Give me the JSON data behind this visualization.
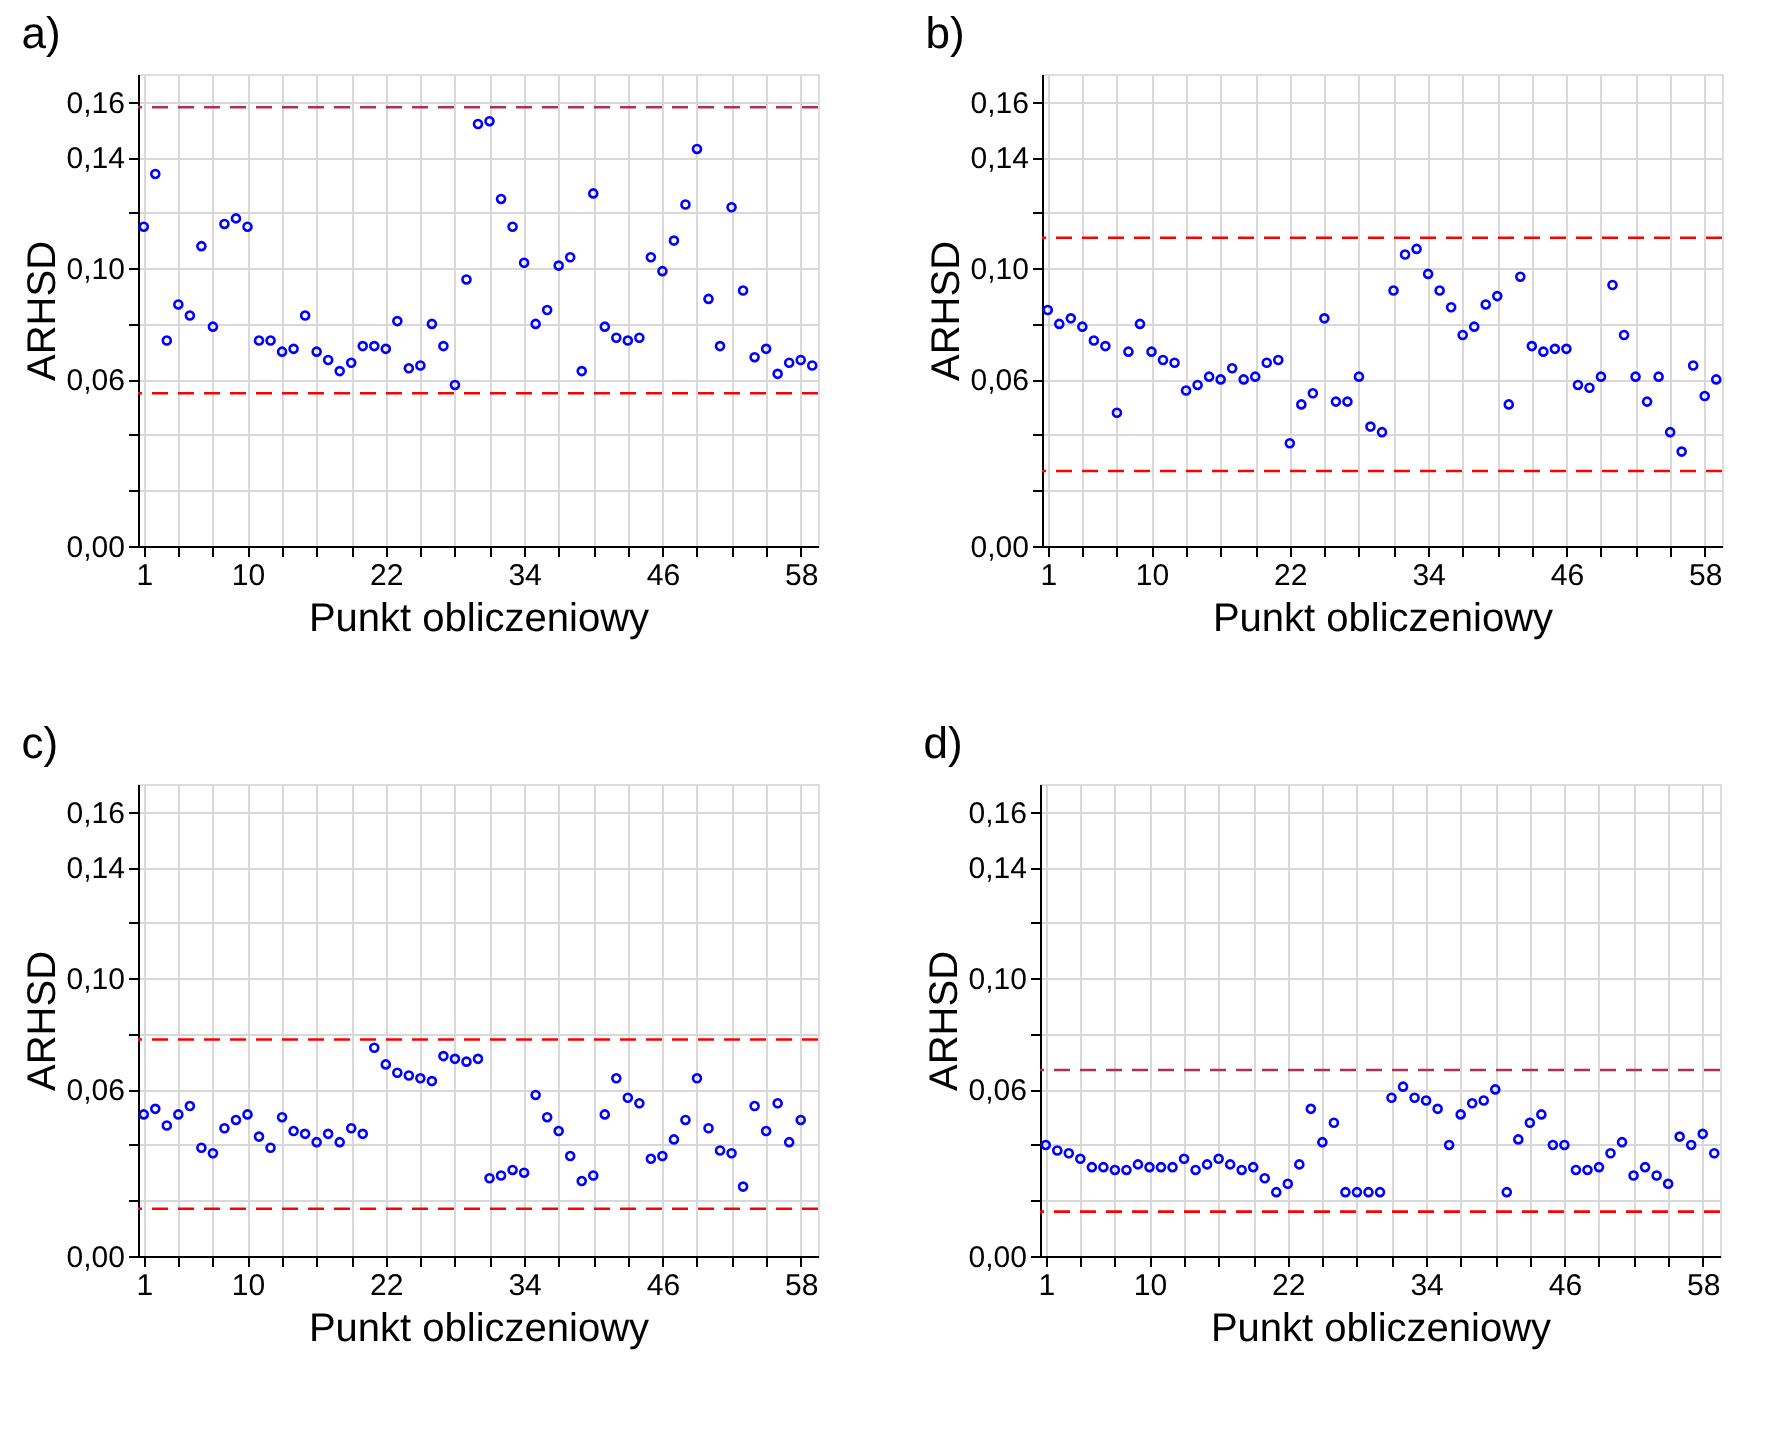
{
  "chart_data": [
    {
      "type": "scatter",
      "title": "a)",
      "xlabel": "Punkt obliczeniowy",
      "ylabel": "ARHSD",
      "marker": "circle",
      "grid": true,
      "xlim": [
        0.5,
        59.5
      ],
      "ylim": [
        0,
        0.17
      ],
      "xticks": [
        {
          "value": 1,
          "label": "1"
        },
        {
          "value": 4,
          "label": null
        },
        {
          "value": 7,
          "label": null
        },
        {
          "value": 10,
          "label": "10"
        },
        {
          "value": 13,
          "label": null
        },
        {
          "value": 16,
          "label": null
        },
        {
          "value": 19,
          "label": null
        },
        {
          "value": 22,
          "label": "22"
        },
        {
          "value": 25,
          "label": null
        },
        {
          "value": 28,
          "label": null
        },
        {
          "value": 31,
          "label": null
        },
        {
          "value": 34,
          "label": "34"
        },
        {
          "value": 37,
          "label": null
        },
        {
          "value": 40,
          "label": null
        },
        {
          "value": 43,
          "label": null
        },
        {
          "value": 46,
          "label": "46"
        },
        {
          "value": 49,
          "label": null
        },
        {
          "value": 52,
          "label": null
        },
        {
          "value": 55,
          "label": null
        },
        {
          "value": 58,
          "label": "58"
        }
      ],
      "yticks": [
        {
          "value": 0,
          "label": "0,00"
        },
        {
          "value": 0.02,
          "label": null
        },
        {
          "value": 0.04,
          "label": null
        },
        {
          "value": 0.06,
          "label": "0,06"
        },
        {
          "value": 0.08,
          "label": null
        },
        {
          "value": 0.1,
          "label": "0,10"
        },
        {
          "value": 0.12,
          "label": null
        },
        {
          "value": 0.14,
          "label": "0,14"
        },
        {
          "value": 0.16,
          "label": "0,16"
        }
      ],
      "x": [
        1,
        2,
        3,
        4,
        5,
        6,
        7,
        8,
        9,
        10,
        11,
        12,
        13,
        14,
        15,
        16,
        17,
        18,
        19,
        20,
        21,
        22,
        23,
        24,
        25,
        26,
        27,
        28,
        29,
        30,
        31,
        32,
        33,
        34,
        35,
        36,
        37,
        38,
        39,
        40,
        41,
        42,
        43,
        44,
        45,
        46,
        47,
        48,
        49,
        50,
        51,
        52,
        53,
        54,
        55,
        56,
        57,
        58,
        59
      ],
      "series": [
        {
          "color": "#0000ff",
          "values": [
            0.115,
            0.134,
            0.074,
            0.087,
            0.083,
            0.108,
            0.079,
            0.116,
            0.118,
            0.115,
            0.074,
            0.074,
            0.07,
            0.071,
            0.083,
            0.07,
            0.067,
            0.063,
            0.066,
            0.072,
            0.072,
            0.071,
            0.081,
            0.064,
            0.065,
            0.08,
            0.072,
            0.058,
            0.096,
            0.152,
            0.153,
            0.125,
            0.115,
            0.102,
            0.08,
            0.085,
            0.101,
            0.104,
            0.063,
            0.127,
            0.079,
            0.075,
            0.074,
            0.075,
            0.104,
            0.099,
            0.11,
            0.123,
            0.143,
            0.089,
            0.072,
            0.122,
            0.092,
            0.068,
            0.071,
            0.062,
            0.066,
            0.067,
            0.065
          ]
        }
      ],
      "ref_lines": [
        {
          "axis": "y",
          "value": 0.158,
          "color": "#b03050",
          "line_style": "dashed"
        },
        {
          "axis": "y",
          "value": 0.055,
          "color": "#ff0000",
          "line_style": "dashed"
        }
      ]
    },
    {
      "type": "scatter",
      "title": "b)",
      "xlabel": "Punkt obliczeniowy",
      "ylabel": "ARHSD",
      "marker": "circle",
      "grid": true,
      "xlim": [
        0.5,
        59.5
      ],
      "ylim": [
        0,
        0.17
      ],
      "xticks": [
        {
          "value": 1,
          "label": "1"
        },
        {
          "value": 4,
          "label": null
        },
        {
          "value": 7,
          "label": null
        },
        {
          "value": 10,
          "label": "10"
        },
        {
          "value": 13,
          "label": null
        },
        {
          "value": 16,
          "label": null
        },
        {
          "value": 19,
          "label": null
        },
        {
          "value": 22,
          "label": "22"
        },
        {
          "value": 25,
          "label": null
        },
        {
          "value": 28,
          "label": null
        },
        {
          "value": 31,
          "label": null
        },
        {
          "value": 34,
          "label": "34"
        },
        {
          "value": 37,
          "label": null
        },
        {
          "value": 40,
          "label": null
        },
        {
          "value": 43,
          "label": null
        },
        {
          "value": 46,
          "label": "46"
        },
        {
          "value": 49,
          "label": null
        },
        {
          "value": 52,
          "label": null
        },
        {
          "value": 55,
          "label": null
        },
        {
          "value": 58,
          "label": "58"
        }
      ],
      "yticks": [
        {
          "value": 0,
          "label": "0,00"
        },
        {
          "value": 0.02,
          "label": null
        },
        {
          "value": 0.04,
          "label": null
        },
        {
          "value": 0.06,
          "label": "0,06"
        },
        {
          "value": 0.08,
          "label": null
        },
        {
          "value": 0.1,
          "label": "0,10"
        },
        {
          "value": 0.12,
          "label": null
        },
        {
          "value": 0.14,
          "label": "0,14"
        },
        {
          "value": 0.16,
          "label": "0,16"
        }
      ],
      "x": [
        1,
        2,
        3,
        4,
        5,
        6,
        7,
        8,
        9,
        10,
        11,
        12,
        13,
        14,
        15,
        16,
        17,
        18,
        19,
        20,
        21,
        22,
        23,
        24,
        25,
        26,
        27,
        28,
        29,
        30,
        31,
        32,
        33,
        34,
        35,
        36,
        37,
        38,
        39,
        40,
        41,
        42,
        43,
        44,
        45,
        46,
        47,
        48,
        49,
        50,
        51,
        52,
        53,
        54,
        55,
        56,
        57,
        58,
        59
      ],
      "series": [
        {
          "color": "#0000ff",
          "values": [
            0.085,
            0.08,
            0.082,
            0.079,
            0.074,
            0.072,
            0.048,
            0.07,
            0.08,
            0.07,
            0.067,
            0.066,
            0.056,
            0.058,
            0.061,
            0.06,
            0.064,
            0.06,
            0.061,
            0.066,
            0.067,
            0.037,
            0.051,
            0.055,
            0.082,
            0.052,
            0.052,
            0.061,
            0.043,
            0.041,
            0.092,
            0.105,
            0.107,
            0.098,
            0.092,
            0.086,
            0.076,
            0.079,
            0.087,
            0.09,
            0.051,
            0.097,
            0.072,
            0.07,
            0.071,
            0.071,
            0.058,
            0.057,
            0.061,
            0.094,
            0.076,
            0.061,
            0.052,
            0.061,
            0.041,
            0.034,
            0.065,
            0.054,
            0.06
          ]
        }
      ],
      "ref_lines": [
        {
          "axis": "y",
          "value": 0.111,
          "color": "#ff0000",
          "line_style": "dashed"
        },
        {
          "axis": "y",
          "value": 0.027,
          "color": "#ff0000",
          "line_style": "dashed"
        }
      ]
    },
    {
      "type": "scatter",
      "title": "c)",
      "xlabel": "Punkt obliczeniowy",
      "ylabel": "ARHSD",
      "marker": "circle",
      "grid": true,
      "xlim": [
        0.5,
        59.5
      ],
      "ylim": [
        0,
        0.17
      ],
      "xticks": [
        {
          "value": 1,
          "label": "1"
        },
        {
          "value": 4,
          "label": null
        },
        {
          "value": 7,
          "label": null
        },
        {
          "value": 10,
          "label": "10"
        },
        {
          "value": 13,
          "label": null
        },
        {
          "value": 16,
          "label": null
        },
        {
          "value": 19,
          "label": null
        },
        {
          "value": 22,
          "label": "22"
        },
        {
          "value": 25,
          "label": null
        },
        {
          "value": 28,
          "label": null
        },
        {
          "value": 31,
          "label": null
        },
        {
          "value": 34,
          "label": "34"
        },
        {
          "value": 37,
          "label": null
        },
        {
          "value": 40,
          "label": null
        },
        {
          "value": 43,
          "label": null
        },
        {
          "value": 46,
          "label": "46"
        },
        {
          "value": 49,
          "label": null
        },
        {
          "value": 52,
          "label": null
        },
        {
          "value": 55,
          "label": null
        },
        {
          "value": 58,
          "label": "58"
        }
      ],
      "yticks": [
        {
          "value": 0,
          "label": "0,00"
        },
        {
          "value": 0.02,
          "label": null
        },
        {
          "value": 0.04,
          "label": null
        },
        {
          "value": 0.06,
          "label": "0,06"
        },
        {
          "value": 0.08,
          "label": null
        },
        {
          "value": 0.1,
          "label": "0,10"
        },
        {
          "value": 0.12,
          "label": null
        },
        {
          "value": 0.14,
          "label": "0,14"
        },
        {
          "value": 0.16,
          "label": "0,16"
        }
      ],
      "x": [
        1,
        2,
        3,
        4,
        5,
        6,
        7,
        8,
        9,
        10,
        11,
        12,
        13,
        14,
        15,
        16,
        17,
        18,
        19,
        20,
        21,
        22,
        23,
        24,
        25,
        26,
        27,
        28,
        29,
        30,
        31,
        32,
        33,
        34,
        35,
        36,
        37,
        38,
        39,
        40,
        41,
        42,
        43,
        44,
        45,
        46,
        47,
        48,
        49,
        50,
        51,
        52,
        53,
        54,
        55,
        56,
        57,
        58
      ],
      "series": [
        {
          "color": "#0000ff",
          "values": [
            0.051,
            0.053,
            0.047,
            0.051,
            0.054,
            0.039,
            0.037,
            0.046,
            0.049,
            0.051,
            0.043,
            0.039,
            0.05,
            0.045,
            0.044,
            0.041,
            0.044,
            0.041,
            0.046,
            0.044,
            0.075,
            0.069,
            0.066,
            0.065,
            0.064,
            0.063,
            0.072,
            0.071,
            0.07,
            0.071,
            0.028,
            0.029,
            0.031,
            0.03,
            0.058,
            0.05,
            0.045,
            0.036,
            0.027,
            0.029,
            0.051,
            0.064,
            0.057,
            0.055,
            0.035,
            0.036,
            0.042,
            0.049,
            0.064,
            0.046,
            0.038,
            0.037,
            0.025,
            0.054,
            0.045,
            0.055,
            0.041,
            0.049
          ]
        }
      ],
      "ref_lines": [
        {
          "axis": "y",
          "value": 0.078,
          "color": "#ff0000",
          "line_style": "dashed"
        },
        {
          "axis": "y",
          "value": 0.017,
          "color": "#ff0000",
          "line_style": "dashed"
        }
      ]
    },
    {
      "type": "scatter",
      "title": "d)",
      "xlabel": "Punkt obliczeniowy",
      "ylabel": "ARHSD",
      "marker": "circle",
      "grid": true,
      "xlim": [
        0.5,
        59.5
      ],
      "ylim": [
        0,
        0.17
      ],
      "xticks": [
        {
          "value": 1,
          "label": "1"
        },
        {
          "value": 4,
          "label": null
        },
        {
          "value": 7,
          "label": null
        },
        {
          "value": 10,
          "label": "10"
        },
        {
          "value": 13,
          "label": null
        },
        {
          "value": 16,
          "label": null
        },
        {
          "value": 19,
          "label": null
        },
        {
          "value": 22,
          "label": "22"
        },
        {
          "value": 25,
          "label": null
        },
        {
          "value": 28,
          "label": null
        },
        {
          "value": 31,
          "label": null
        },
        {
          "value": 34,
          "label": "34"
        },
        {
          "value": 37,
          "label": null
        },
        {
          "value": 40,
          "label": null
        },
        {
          "value": 43,
          "label": null
        },
        {
          "value": 46,
          "label": "46"
        },
        {
          "value": 49,
          "label": null
        },
        {
          "value": 52,
          "label": null
        },
        {
          "value": 55,
          "label": null
        },
        {
          "value": 58,
          "label": "58"
        }
      ],
      "yticks": [
        {
          "value": 0,
          "label": "0,00"
        },
        {
          "value": 0.02,
          "label": null
        },
        {
          "value": 0.04,
          "label": null
        },
        {
          "value": 0.06,
          "label": "0,06"
        },
        {
          "value": 0.08,
          "label": null
        },
        {
          "value": 0.1,
          "label": "0,10"
        },
        {
          "value": 0.12,
          "label": null
        },
        {
          "value": 0.14,
          "label": "0,14"
        },
        {
          "value": 0.16,
          "label": "0,16"
        }
      ],
      "x": [
        1,
        2,
        3,
        4,
        5,
        6,
        7,
        8,
        9,
        10,
        11,
        12,
        13,
        14,
        15,
        16,
        17,
        18,
        19,
        20,
        21,
        22,
        23,
        24,
        25,
        26,
        27,
        28,
        29,
        30,
        31,
        32,
        33,
        34,
        35,
        36,
        37,
        38,
        39,
        40,
        41,
        42,
        43,
        44,
        45,
        46,
        47,
        48,
        49,
        50,
        51,
        52,
        53,
        54,
        55,
        56,
        57,
        58,
        59
      ],
      "series": [
        {
          "color": "#0000ff",
          "values": [
            0.04,
            0.038,
            0.037,
            0.035,
            0.032,
            0.032,
            0.031,
            0.031,
            0.033,
            0.032,
            0.032,
            0.032,
            0.035,
            0.031,
            0.033,
            0.035,
            0.033,
            0.031,
            0.032,
            0.028,
            0.023,
            0.026,
            0.033,
            0.053,
            0.041,
            0.048,
            0.023,
            0.023,
            0.023,
            0.023,
            0.057,
            0.061,
            0.057,
            0.056,
            0.053,
            0.04,
            0.051,
            0.055,
            0.056,
            0.06,
            0.023,
            0.042,
            0.048,
            0.051,
            0.04,
            0.04,
            0.031,
            0.031,
            0.032,
            0.037,
            0.041,
            0.029,
            0.032,
            0.029,
            0.026,
            0.043,
            0.04,
            0.044,
            0.037
          ]
        }
      ],
      "ref_lines": [
        {
          "axis": "y",
          "value": 0.067,
          "color": "#b03050",
          "line_style": "dashed"
        },
        {
          "axis": "y",
          "value": 0.016,
          "color": "#ff0000",
          "line_style": "dashed"
        }
      ]
    }
  ]
}
